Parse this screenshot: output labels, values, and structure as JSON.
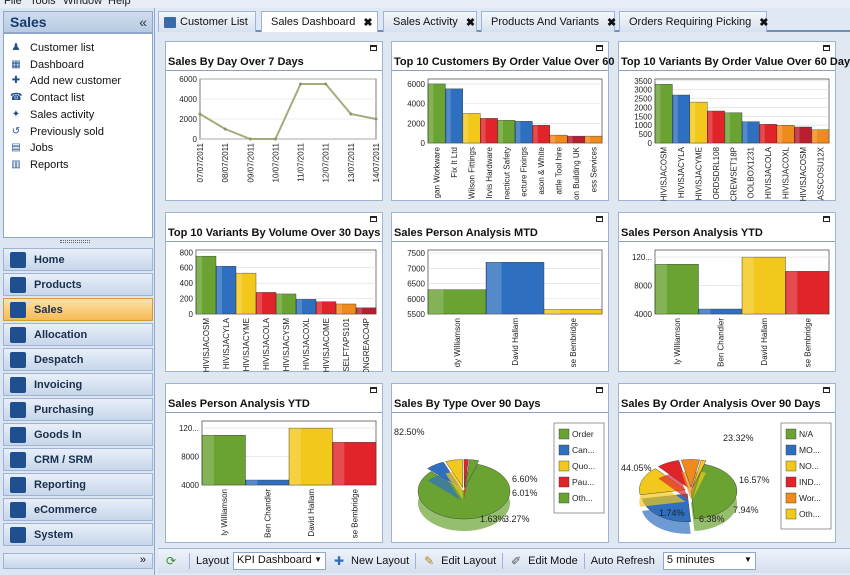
{
  "menu": [
    "File",
    "Tools",
    "Window",
    "Help"
  ],
  "sidebar": {
    "header": "Sales",
    "collapse_glyph": "«",
    "tasks": [
      {
        "label": "Customer list",
        "icon": "person-icon"
      },
      {
        "label": "Dashboard",
        "icon": "dashboard-icon"
      },
      {
        "label": "Add new customer",
        "icon": "add-person-icon"
      },
      {
        "label": "Contact list",
        "icon": "contact-icon"
      },
      {
        "label": "Sales activity",
        "icon": "activity-icon"
      },
      {
        "label": "Previously sold",
        "icon": "history-icon"
      },
      {
        "label": "Jobs",
        "icon": "jobs-icon"
      },
      {
        "label": "Reports",
        "icon": "reports-icon"
      }
    ],
    "nav": [
      {
        "label": "Home"
      },
      {
        "label": "Products"
      },
      {
        "label": "Sales",
        "active": true
      },
      {
        "label": "Allocation"
      },
      {
        "label": "Despatch"
      },
      {
        "label": "Invoicing"
      },
      {
        "label": "Purchasing"
      },
      {
        "label": "Goods In"
      },
      {
        "label": "CRM / SRM"
      },
      {
        "label": "Reporting"
      },
      {
        "label": "eCommerce"
      },
      {
        "label": "System"
      }
    ],
    "footer_glyph": "»"
  },
  "tabs": [
    {
      "label": "Customer List",
      "active": false
    },
    {
      "label": "Sales Dashboard",
      "active": true
    },
    {
      "label": "Sales Activity",
      "active": false
    },
    {
      "label": "Products And Variants",
      "active": false
    },
    {
      "label": "Orders Requiring Picking",
      "active": false
    }
  ],
  "tab_close": "✖",
  "panels": [
    {
      "title": "Sales By Day Over 7 Days"
    },
    {
      "title": "Top 10 Customers By Order Value Over 60 Days"
    },
    {
      "title": "Top 10 Variants By Order Value Over 60 Days"
    },
    {
      "title": "Top 10 Variants By Volume Over 30 Days"
    },
    {
      "title": "Sales Person Analysis MTD"
    },
    {
      "title": "Sales Person Analysis YTD"
    },
    {
      "title": "Sales Person Analysis YTD"
    },
    {
      "title": "Sales By Type Over 90 Days"
    },
    {
      "title": "Sales By Order Analysis Over 90 Days"
    }
  ],
  "statusbar": {
    "layout_label": "Layout",
    "layout_value": "KPI Dashboard",
    "new_layout": "New Layout",
    "edit_layout": "Edit Layout",
    "edit_mode": "Edit Mode",
    "auto_refresh_label": "Auto Refresh",
    "auto_refresh_value": "5 minutes"
  },
  "colors": {
    "green": "#6aa332",
    "blue": "#2f6fbf",
    "yellow": "#f2c81c",
    "red": "#e0242a",
    "darkred": "#b81f2f",
    "orange": "#ef8a1c",
    "line": "#a5ab7a"
  },
  "chart_data": [
    {
      "type": "line",
      "title": "Sales By Day Over 7 Days",
      "categories": [
        "07/07/2011",
        "08/07/2011",
        "09/07/2011",
        "10/07/2011",
        "11/07/2011",
        "12/07/2011",
        "13/07/2011",
        "14/07/2011"
      ],
      "values": [
        2500,
        1000,
        0,
        0,
        5500,
        5500,
        2500,
        2000
      ],
      "yticks": [
        0,
        2000,
        4000,
        6000
      ],
      "ylim": [
        0,
        6000
      ]
    },
    {
      "type": "bar",
      "title": "Top 10 Customers By Order Value Over 60 Days",
      "categories": [
        "gan Workware",
        "Fix It Ltd",
        "Wilson Fittings",
        "Irvis Hardware",
        "necticut Safety",
        "ecture Fixings",
        "ason & White",
        "attle Tool hire",
        "on Building UK",
        "ess Services"
      ],
      "values": [
        6000,
        5500,
        3000,
        2500,
        2300,
        2200,
        1800,
        800,
        700,
        700
      ],
      "yticks": [
        0,
        2000,
        4000,
        6000
      ],
      "ylim": [
        0,
        6500
      ]
    },
    {
      "type": "bar",
      "title": "Top 10 Variants By Order Value Over 60 Days",
      "categories": [
        "HIVISJACOSM",
        "HIVISJACYLA",
        "HIVISJACYME",
        "ORDSDRL108",
        "CREWSET18P",
        "OOLBOX1231",
        "HIVISJACOLA",
        "HIVISJACOXL",
        "HIVISJACOSM",
        "ASSCOSU12X"
      ],
      "values": [
        3300,
        2700,
        2300,
        1800,
        1700,
        1200,
        1050,
        1000,
        900,
        750
      ],
      "yticks": [
        0,
        500,
        1000,
        1500,
        2000,
        2500,
        3000,
        3500
      ],
      "ylim": [
        0,
        3600
      ]
    },
    {
      "type": "bar",
      "title": "Top 10 Variants By Volume Over 30 Days",
      "categories": [
        "HIVISJACOSM",
        "HIVISJACYLA",
        "HIVISJACYME",
        "HIVISJACOLA",
        "HIVISJACYSM",
        "HIVISJACOXL",
        "HIVISJACOME",
        "SELFTAPS101",
        "ONGREACO4P"
      ],
      "values": [
        750,
        620,
        530,
        280,
        260,
        190,
        160,
        130,
        80
      ],
      "yticks": [
        0,
        200,
        400,
        600,
        800
      ],
      "ylim": [
        0,
        830
      ]
    },
    {
      "type": "bar",
      "title": "Sales Person Analysis MTD",
      "categories": [
        "dy Williamson",
        "David Hallam",
        "se Bembridge"
      ],
      "values": [
        6300,
        7200,
        5650
      ],
      "yticks": [
        5500,
        6000,
        6500,
        7000,
        7500
      ],
      "ylim": [
        5500,
        7600
      ]
    },
    {
      "type": "bar",
      "title": "Sales Person Analysis YTD",
      "categories": [
        "ly Williamson",
        "Ben Chandler",
        "David Hallam",
        "se Bembridge"
      ],
      "values": [
        11000,
        4700,
        12000,
        10000
      ],
      "ytick_labels": [
        "4000",
        "8000",
        "120..."
      ],
      "ylim": [
        4000,
        13000
      ]
    },
    {
      "type": "bar",
      "title": "Sales Person Analysis YTD",
      "categories": [
        "ly Williamson",
        "Ben Chandler",
        "David Hallam",
        "se Bembridge"
      ],
      "values": [
        11000,
        4700,
        12000,
        10000
      ],
      "ytick_labels": [
        "4000",
        "8000",
        "120..."
      ],
      "ylim": [
        4000,
        13000
      ]
    },
    {
      "type": "pie",
      "title": "Sales By Type Over 90 Days",
      "legend": [
        "Order",
        "Can...",
        "Quo...",
        "Pau...",
        "Oth..."
      ],
      "slice_labels": [
        "82.50%",
        "6.60%",
        "6.01%",
        "1.63%",
        "3.27%"
      ],
      "values": [
        82.5,
        6.6,
        6.01,
        1.63,
        3.27
      ],
      "legend_placement": "right"
    },
    {
      "type": "pie",
      "title": "Sales By Order Analysis Over 90 Days",
      "legend": [
        "N/A",
        "MO...",
        "NO...",
        "IND...",
        "Wor...",
        "Oth..."
      ],
      "slice_labels": [
        "44.05%",
        "23.32%",
        "16.57%",
        "7.94%",
        "6.38%",
        "1.74%"
      ],
      "values": [
        44.05,
        23.32,
        16.57,
        7.94,
        6.38,
        1.74
      ],
      "legend_placement": "right"
    }
  ]
}
